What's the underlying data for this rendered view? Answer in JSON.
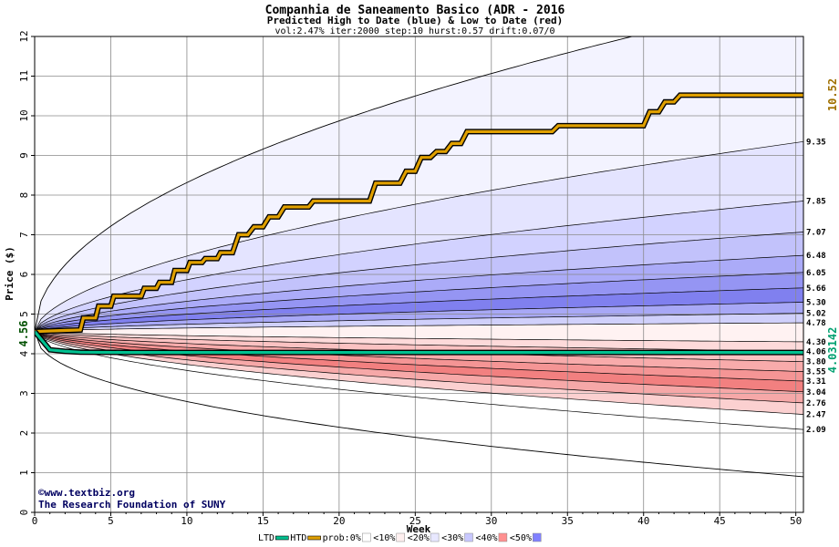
{
  "chart_data": {
    "type": "area",
    "title": "Companhia de Saneamento Basico (ADR - 2016",
    "subtitle": "Predicted High to Date (blue) &  Low to Date (red)",
    "params": "vol:2.47% iter:2000 step:10 hurst:0.57 drift:0.07/0",
    "xlabel": "Week",
    "ylabel": "Price ($)",
    "xlim": [
      0,
      50.5
    ],
    "ylim": [
      0,
      12
    ],
    "xticks": [
      0,
      5,
      10,
      15,
      20,
      25,
      30,
      35,
      40,
      45,
      50
    ],
    "yticks": [
      0,
      1,
      2,
      3,
      4,
      5,
      6,
      7,
      8,
      9,
      10,
      11,
      12
    ],
    "grid": true,
    "start_price": 4.56,
    "start_label": "4.56",
    "htd_label": "10.52",
    "ltd_label": "4.03142",
    "percentile_end_values": [
      "9.35",
      "7.85",
      "7.07",
      "6.48",
      "6.05",
      "5.66",
      "5.30",
      "5.02",
      "4.78",
      "4.30",
      "4.06",
      "3.80",
      "3.55",
      "3.31",
      "3.04",
      "2.76",
      "2.47",
      "2.09"
    ],
    "series": [
      {
        "name": "HTD",
        "color": "#e0a000",
        "x": [
          0,
          3,
          3.2,
          4,
          4.2,
          5,
          5.2,
          7,
          7.2,
          8,
          8.2,
          9,
          9.2,
          10,
          10.2,
          11,
          11.2,
          12,
          12.2,
          13,
          13.4,
          14,
          14.4,
          15,
          15.4,
          16,
          16.4,
          18,
          18.3,
          22,
          22.4,
          24,
          24.4,
          25,
          25.4,
          26,
          26.4,
          27,
          27.4,
          28,
          28.4,
          34,
          34.4,
          40,
          40.4,
          41,
          41.4,
          42,
          42.4,
          50.5
        ],
        "y": [
          4.56,
          4.6,
          4.9,
          4.9,
          5.2,
          5.2,
          5.45,
          5.45,
          5.65,
          5.65,
          5.8,
          5.8,
          6.1,
          6.1,
          6.3,
          6.3,
          6.4,
          6.4,
          6.55,
          6.55,
          7.0,
          7.0,
          7.2,
          7.2,
          7.45,
          7.45,
          7.7,
          7.7,
          7.85,
          7.85,
          8.3,
          8.3,
          8.6,
          8.6,
          8.95,
          8.95,
          9.1,
          9.1,
          9.3,
          9.3,
          9.6,
          9.6,
          9.75,
          9.75,
          10.1,
          10.1,
          10.35,
          10.35,
          10.52,
          10.52
        ]
      },
      {
        "name": "LTD",
        "color": "#00c090",
        "x": [
          0,
          1,
          2,
          3,
          6,
          10,
          20,
          30,
          40,
          50.5
        ],
        "y": [
          4.56,
          4.1,
          4.06,
          4.04,
          4.03142,
          4.03142,
          4.03142,
          4.03142,
          4.03142,
          4.03142
        ]
      }
    ],
    "legend": {
      "items": [
        {
          "label": "LTD",
          "color": "#00c090"
        },
        {
          "label": "HTD",
          "color": "#e0a000"
        },
        {
          "label": "prob:0%",
          "color": "#ffffff"
        },
        {
          "label": "<10%",
          "color": "#fff0f0"
        },
        {
          "label": "<20%",
          "color": "#e8e8ff"
        },
        {
          "label": "<30%",
          "color": "#c8c8ff"
        },
        {
          "label": "<40%",
          "color": "#ff9090"
        },
        {
          "label": "<50%",
          "color": "#8080ff"
        }
      ]
    },
    "credit_line1": "©www.textbiz.org",
    "credit_line2": "The Research Foundation of SUNY",
    "colors": {
      "upper_fills": [
        "#f3f3ff",
        "#e4e4ff",
        "#d2d2ff",
        "#c2c2fb",
        "#ababf8",
        "#9595f3",
        "#8080ef",
        "#a8a8f6",
        "#d0d0fb"
      ],
      "lower_fills": [
        "#fff2f2",
        "#fddada",
        "#fbc2c2",
        "#f8abab",
        "#f59595",
        "#f28080",
        "#f6a8a8",
        "#fbd0d0",
        "#ffffff"
      ],
      "htd": "#e0a000",
      "ltd": "#00c090"
    }
  }
}
